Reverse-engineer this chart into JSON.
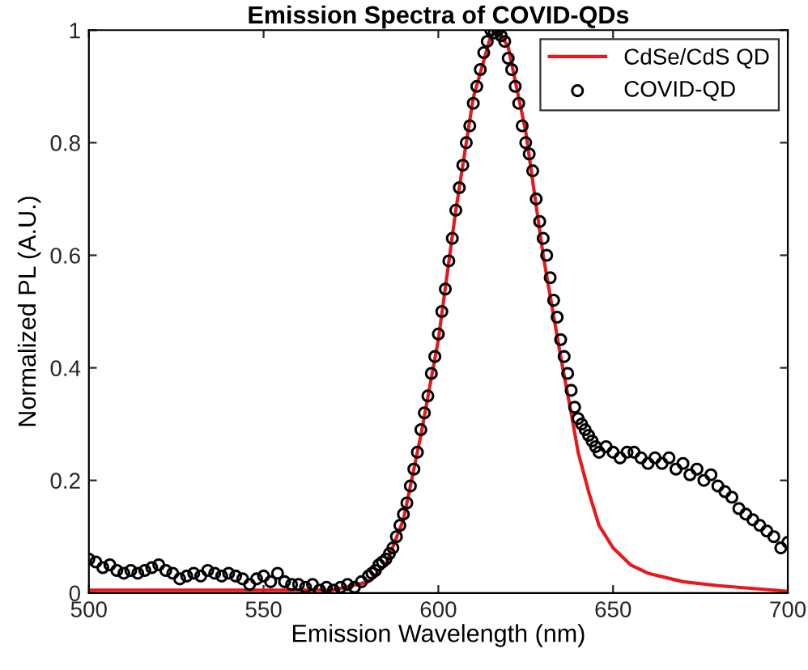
{
  "chart_data": {
    "type": "line",
    "title": "Emission Spectra of COVID-QDs",
    "xlabel": "Emission Wavelength (nm)",
    "ylabel": "Normalized PL (A.U.)",
    "xlim": [
      500,
      700
    ],
    "xticks": [
      500,
      550,
      600,
      650,
      700
    ],
    "ylim": [
      0,
      1
    ],
    "yticks": [
      0,
      0.2,
      0.4,
      0.6,
      0.8,
      1
    ],
    "grid": false,
    "legend": "top right",
    "series": [
      {
        "name": "CdSe/CdS QD",
        "color": "#e8191c",
        "marker": "none",
        "line_style": "solid",
        "x": [
          500,
          570,
          580,
          585,
          590,
          595,
          600,
          605,
          610,
          615,
          617,
          620,
          625,
          630,
          635,
          638,
          640,
          643,
          646,
          650,
          655,
          660,
          670,
          680,
          690,
          700
        ],
        "values": [
          0.005,
          0.005,
          0.02,
          0.05,
          0.13,
          0.28,
          0.45,
          0.68,
          0.88,
          0.99,
          1.0,
          0.97,
          0.82,
          0.6,
          0.42,
          0.32,
          0.25,
          0.18,
          0.12,
          0.08,
          0.05,
          0.035,
          0.02,
          0.013,
          0.008,
          0.003
        ]
      },
      {
        "name": "COVID-QD",
        "type": "scatter",
        "color": "#000000",
        "marker": "circle",
        "x": [
          500,
          502,
          504,
          506,
          508,
          510,
          512,
          514,
          516,
          518,
          520,
          522,
          524,
          526,
          528,
          530,
          532,
          534,
          536,
          538,
          540,
          542,
          544,
          546,
          548,
          550,
          552,
          554,
          556,
          558,
          560,
          562,
          564,
          566,
          568,
          570,
          572,
          574,
          576,
          578,
          580,
          581,
          582,
          583,
          584,
          585,
          586,
          587,
          588,
          589,
          590,
          591,
          592,
          593,
          594,
          595,
          596,
          597,
          598,
          599,
          600,
          601,
          602,
          603,
          604,
          605,
          606,
          607,
          608,
          609,
          610,
          611,
          612,
          613,
          614,
          615,
          616,
          617,
          618,
          619,
          620,
          621,
          622,
          623,
          624,
          625,
          626,
          627,
          628,
          629,
          630,
          631,
          632,
          633,
          634,
          635,
          636,
          637,
          638,
          639,
          640,
          641,
          642,
          643,
          644,
          645,
          646,
          648,
          650,
          652,
          654,
          656,
          658,
          660,
          662,
          664,
          666,
          668,
          670,
          672,
          674,
          676,
          678,
          680,
          682,
          684,
          686,
          688,
          690,
          692,
          694,
          696,
          698,
          700
        ],
        "values": [
          0.06,
          0.055,
          0.045,
          0.05,
          0.04,
          0.035,
          0.04,
          0.035,
          0.04,
          0.045,
          0.05,
          0.04,
          0.035,
          0.025,
          0.03,
          0.035,
          0.03,
          0.04,
          0.035,
          0.03,
          0.035,
          0.03,
          0.025,
          0.015,
          0.025,
          0.03,
          0.02,
          0.035,
          0.02,
          0.015,
          0.015,
          0.01,
          0.015,
          0.005,
          0.01,
          0.005,
          0.01,
          0.015,
          0.01,
          0.02,
          0.03,
          0.035,
          0.04,
          0.05,
          0.055,
          0.06,
          0.07,
          0.08,
          0.1,
          0.12,
          0.14,
          0.16,
          0.19,
          0.22,
          0.25,
          0.29,
          0.32,
          0.35,
          0.39,
          0.42,
          0.46,
          0.5,
          0.54,
          0.59,
          0.63,
          0.68,
          0.72,
          0.76,
          0.8,
          0.83,
          0.87,
          0.9,
          0.93,
          0.96,
          0.98,
          1.0,
          0.995,
          1.0,
          0.99,
          0.98,
          0.95,
          0.93,
          0.9,
          0.87,
          0.83,
          0.8,
          0.78,
          0.75,
          0.7,
          0.66,
          0.63,
          0.6,
          0.56,
          0.52,
          0.49,
          0.45,
          0.42,
          0.39,
          0.36,
          0.33,
          0.31,
          0.3,
          0.29,
          0.28,
          0.27,
          0.26,
          0.25,
          0.26,
          0.25,
          0.24,
          0.25,
          0.25,
          0.24,
          0.23,
          0.24,
          0.23,
          0.24,
          0.22,
          0.23,
          0.21,
          0.22,
          0.2,
          0.21,
          0.19,
          0.18,
          0.17,
          0.15,
          0.14,
          0.13,
          0.12,
          0.11,
          0.1,
          0.08,
          0.09
        ]
      }
    ]
  }
}
